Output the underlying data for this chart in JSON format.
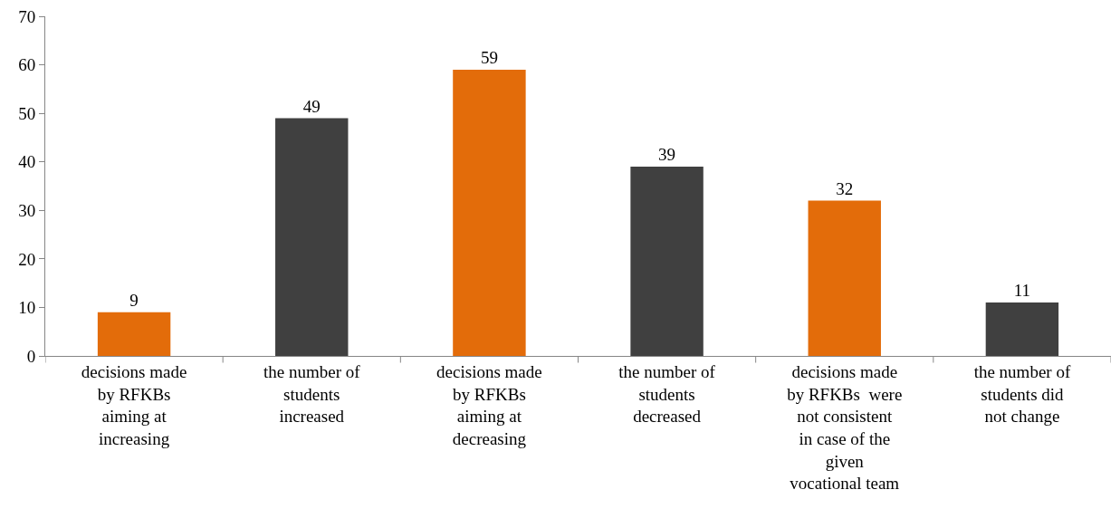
{
  "chart_data": {
    "type": "bar",
    "categories": [
      "decisions made\nby RFKBs\naiming at\nincreasing",
      "the number of\nstudents\nincreased",
      "decisions made\nby RFKBs\naiming at\ndecreasing",
      "the number of\nstudents\ndecreased",
      "decisions made\nby RFKBs  were\nnot consistent\nin case of the\ngiven\nvocational team",
      "the number of\nstudents did\nnot change"
    ],
    "values": [
      9,
      49,
      59,
      39,
      32,
      11
    ],
    "colors": [
      "#e36c0a",
      "#404040",
      "#e36c0a",
      "#404040",
      "#e36c0a",
      "#404040"
    ],
    "ylim": [
      0,
      70
    ],
    "yticks": [
      0,
      10,
      20,
      30,
      40,
      50,
      60,
      70
    ],
    "data_labels": true,
    "grid": false
  }
}
